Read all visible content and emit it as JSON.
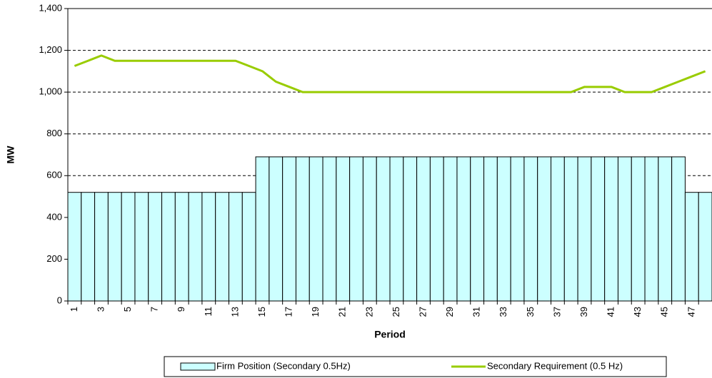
{
  "chart_data": {
    "type": "bar",
    "xlabel": "Period",
    "ylabel": "MW",
    "categories": [
      "1",
      null,
      "3",
      null,
      "5",
      null,
      "7",
      null,
      "9",
      null,
      "11",
      null,
      "13",
      null,
      "15",
      null,
      "17",
      null,
      "19",
      null,
      "21",
      null,
      "23",
      null,
      "25",
      null,
      "27",
      null,
      "29",
      null,
      "31",
      null,
      "33",
      null,
      "35",
      null,
      "37",
      null,
      "39",
      null,
      "41",
      null,
      "43",
      null,
      "45",
      null,
      "47",
      null
    ],
    "series": [
      {
        "name": "Firm Position (Secondary 0.5Hz)",
        "type": "bar",
        "color": "#ccffff",
        "values": [
          520,
          520,
          520,
          520,
          520,
          520,
          520,
          520,
          520,
          520,
          520,
          520,
          520,
          520,
          690,
          690,
          690,
          690,
          690,
          690,
          690,
          690,
          690,
          690,
          690,
          690,
          690,
          690,
          690,
          690,
          690,
          690,
          690,
          690,
          690,
          690,
          690,
          690,
          690,
          690,
          690,
          690,
          690,
          690,
          690,
          690,
          520,
          520
        ]
      },
      {
        "name": "Secondary Requirement (0.5 Hz)",
        "type": "line",
        "color": "#99cc00",
        "values": [
          1125,
          1150,
          1175,
          1150,
          1150,
          1150,
          1150,
          1150,
          1150,
          1150,
          1150,
          1150,
          1150,
          1125,
          1100,
          1050,
          1025,
          1000,
          1000,
          1000,
          1000,
          1000,
          1000,
          1000,
          1000,
          1000,
          1000,
          1000,
          1000,
          1000,
          1000,
          1000,
          1000,
          1000,
          1000,
          1000,
          1000,
          1000,
          1025,
          1025,
          1025,
          1000,
          1000,
          1000,
          1025,
          1050,
          1075,
          1100
        ]
      }
    ],
    "ylim": [
      0,
      1400
    ],
    "yticks": [
      0,
      200,
      400,
      600,
      800,
      {
        "value": 1000,
        "label": "1,000"
      },
      {
        "value": 1200,
        "label": "1,200"
      },
      {
        "value": 1400,
        "label": "1,400"
      }
    ],
    "grid": true
  }
}
